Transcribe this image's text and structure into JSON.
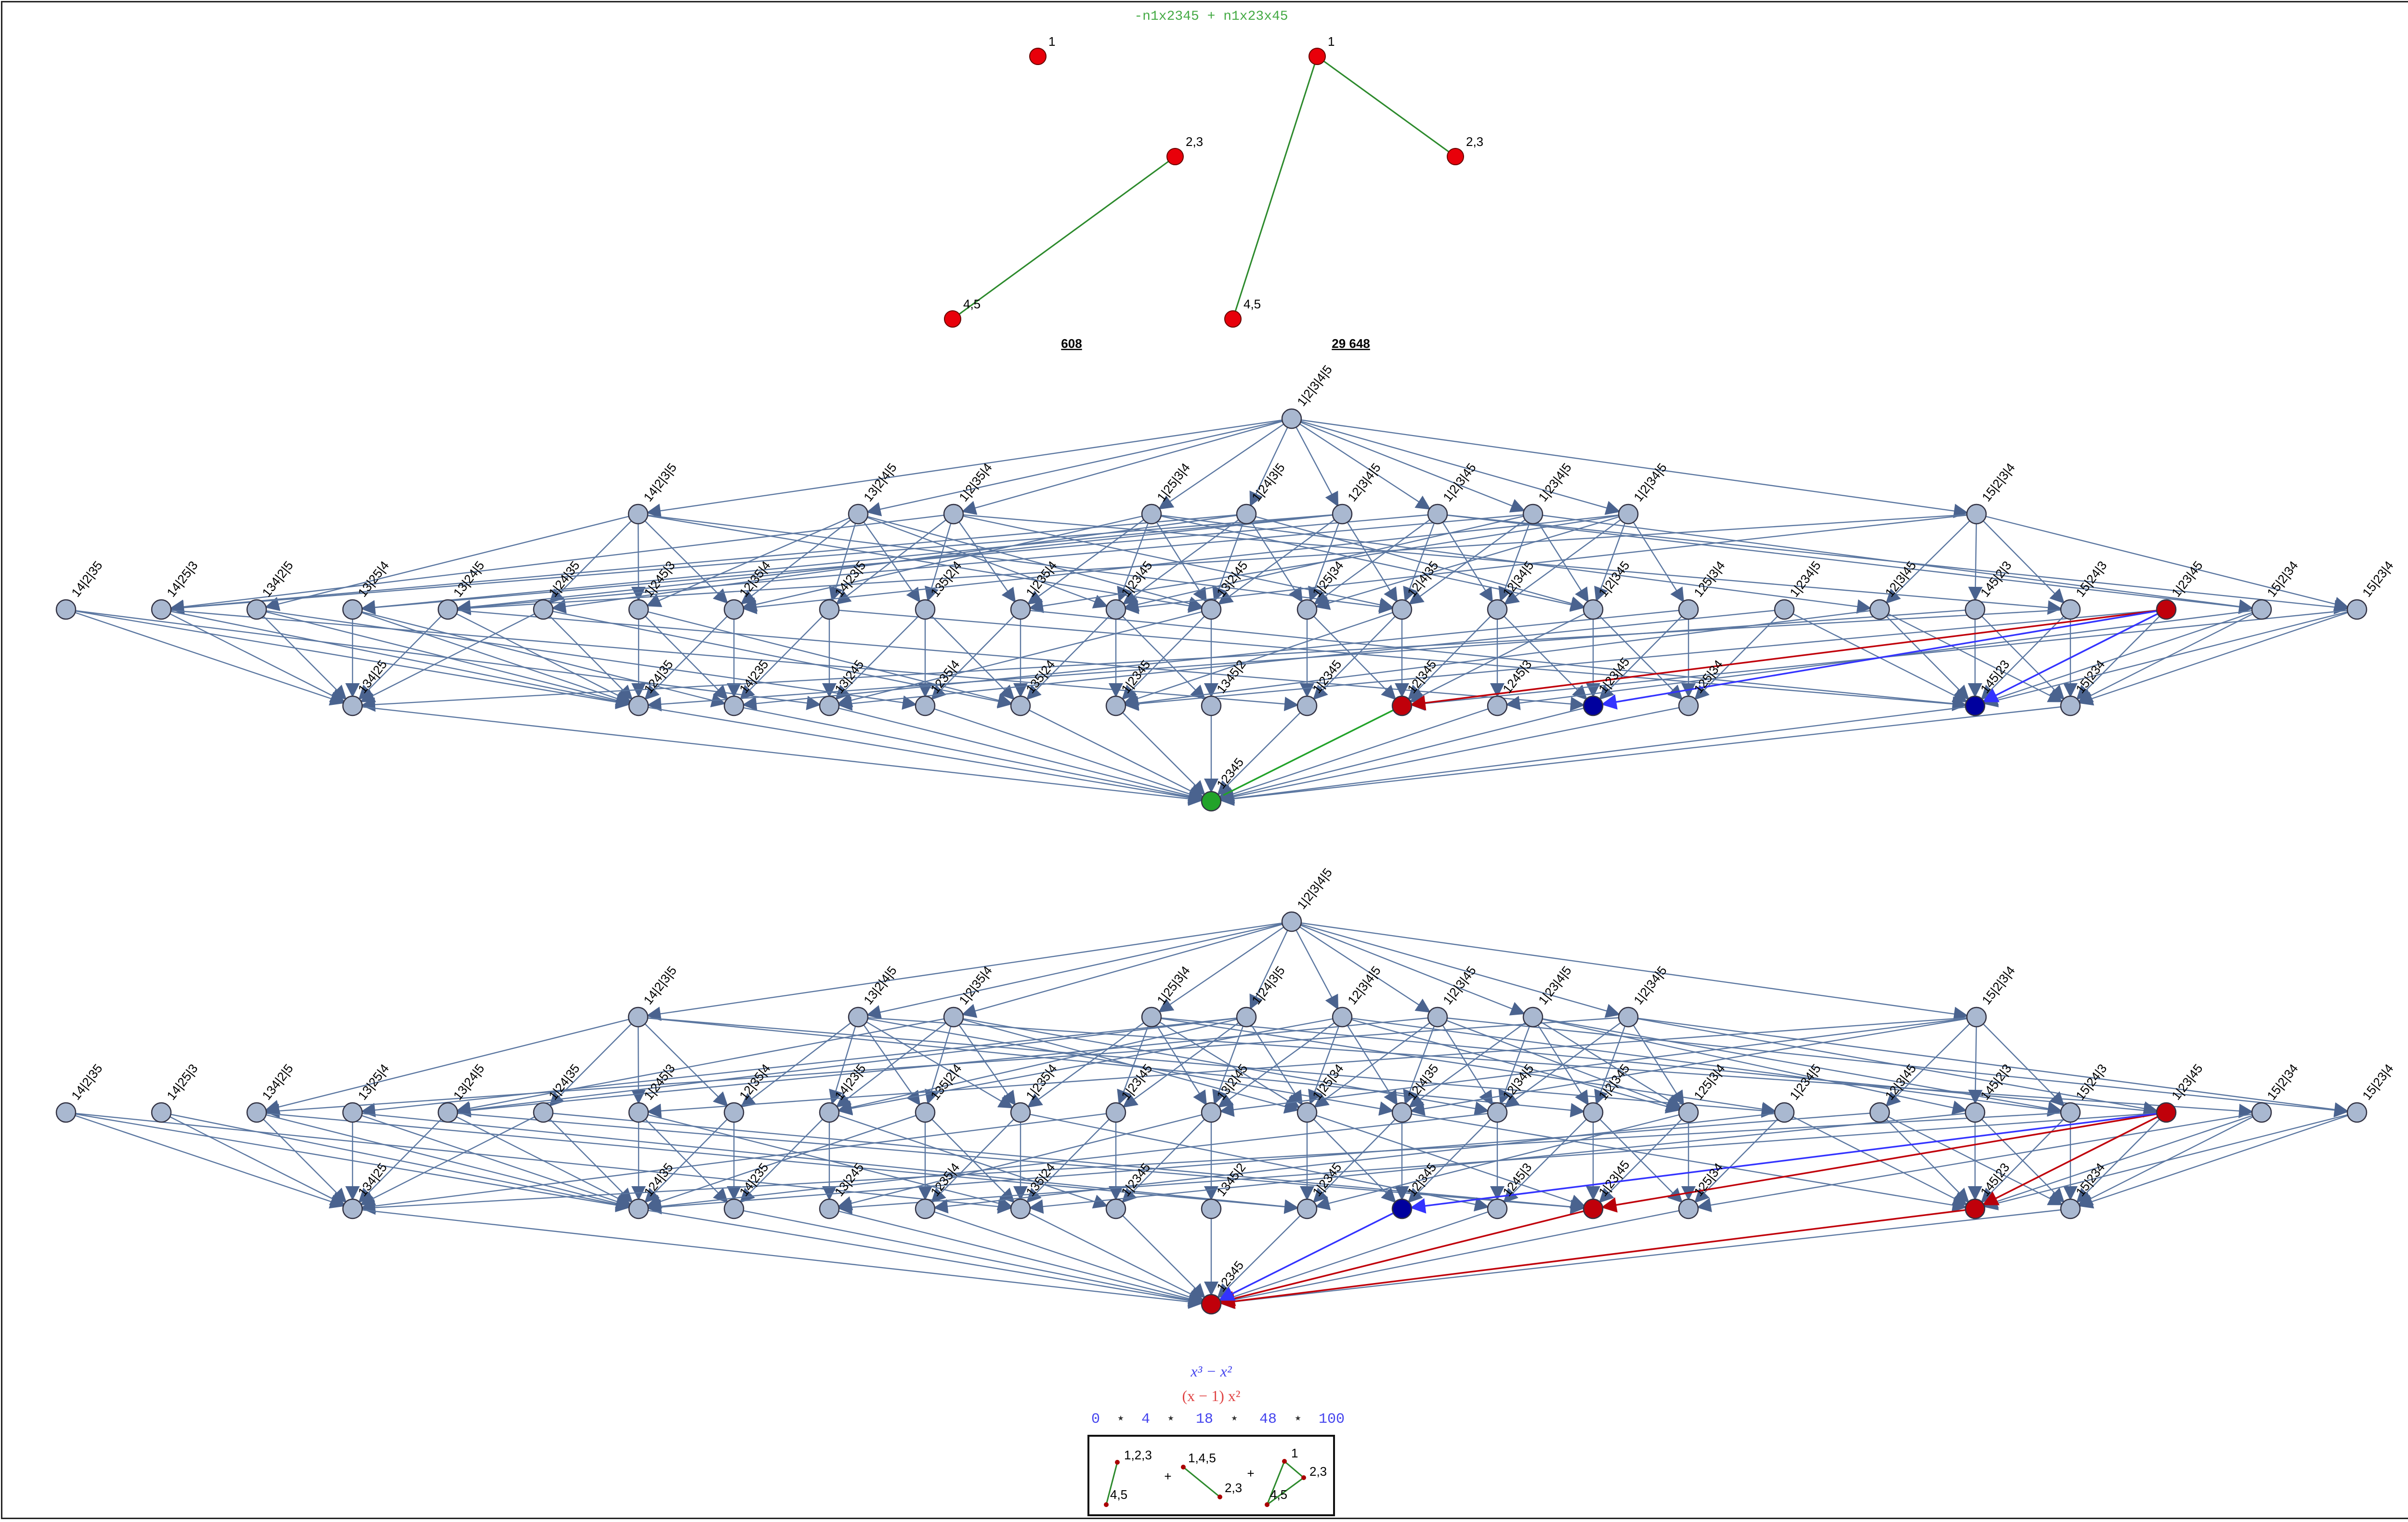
{
  "header": {
    "formula": "-n1x2345 + n1x23x45",
    "left_count": "608",
    "right_count": "29 648"
  },
  "top_graphs": {
    "left": {
      "nodes": [
        "1",
        "2,3",
        "4,5"
      ],
      "edges": [
        [
          "2,3",
          "4,5"
        ]
      ]
    },
    "right": {
      "nodes": [
        "1",
        "2,3",
        "4,5"
      ],
      "edges": [
        [
          "1",
          "2,3"
        ],
        [
          "1",
          "4,5"
        ]
      ]
    }
  },
  "lattice": {
    "rank0": [
      "1|2|3|4|5"
    ],
    "rank1": [
      "14|2|3|5",
      "13|2|4|5",
      "1|2|35|4",
      "1|25|3|4",
      "1|24|3|5",
      "12|3|4|5",
      "1|2|3|45",
      "1|23|4|5",
      "1|2|34|5",
      "15|2|3|4"
    ],
    "rank2": [
      "14|2|35",
      "14|25|3",
      "134|2|5",
      "13|25|4",
      "13|24|5",
      "1|24|35",
      "1|245|3",
      "12|35|4",
      "14|23|5",
      "135|2|4",
      "1|235|4",
      "1|23|45",
      "13|2|45",
      "1|25|34",
      "12|4|35",
      "12|34|5",
      "1|2|345",
      "125|3|4",
      "1|234|5",
      "12|3|45",
      "145|2|3",
      "15|24|3",
      "1|23|45",
      "15|2|34",
      "15|23|4"
    ],
    "rank3": [
      "134|25",
      "124|35",
      "14|235",
      "13|245",
      "1235|4",
      "135|24",
      "1|2345",
      "1345|2",
      "1|2345",
      "12|345",
      "1245|3",
      "1|23|45",
      "125|34",
      "145|23",
      "15|234"
    ],
    "rank4": [
      "12345"
    ]
  },
  "graph_a": {
    "red_nodes": [
      "1|23|45",
      "1|2345"
    ],
    "blue_nodes": [
      "1|23|45",
      "145|23"
    ],
    "green_nodes": [
      "12345"
    ]
  },
  "graph_b": {
    "red_nodes": [
      "1|23|45",
      "1|23|45",
      "145|23",
      "12345"
    ],
    "blue_nodes": [
      "1|2345"
    ],
    "green_nodes": []
  },
  "polynomials": {
    "blue": "x³ − x²",
    "red": "(x − 1) x²",
    "sequence": [
      "0",
      "4",
      "18",
      "48",
      "100"
    ],
    "separator": "⋆"
  },
  "inset": {
    "labels": [
      "1,2,3",
      "4,5",
      "1,4,5",
      "2,3",
      "1",
      "2,3",
      "4,5"
    ],
    "plus": "+"
  },
  "colors": {
    "node": "#a9b8d0",
    "edge": "#5a76a0",
    "red": "#c0000a",
    "blue": "#00009e",
    "green": "#22a32a",
    "green_line": "#2c8a2c",
    "title_green": "#44aa44",
    "count_red": "#e0001a",
    "poly_blue": "#4444ee",
    "poly_red": "#e04444"
  }
}
